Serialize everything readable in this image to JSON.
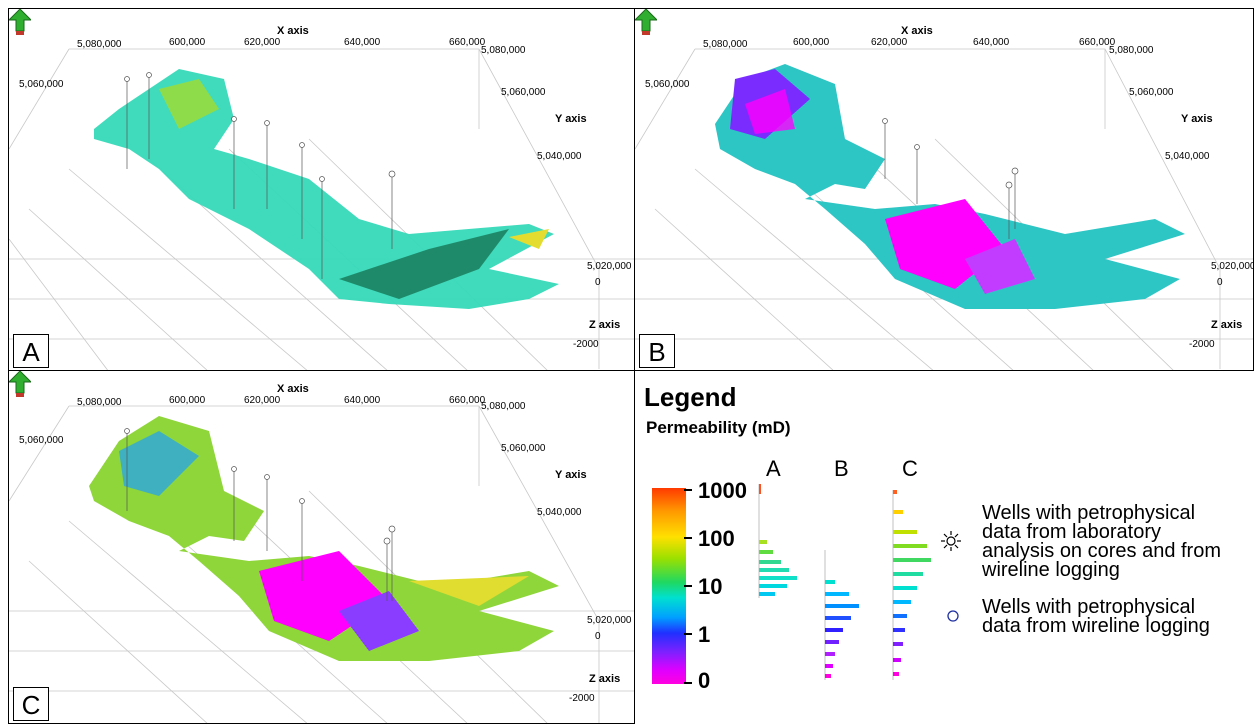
{
  "panels": [
    {
      "label": "A"
    },
    {
      "label": "B"
    },
    {
      "label": "C"
    }
  ],
  "axes": {
    "x_title": "X axis",
    "y_title": "Y axis",
    "z_title": "Z axis",
    "x_ticks": [
      "5,080,000",
      "600,000",
      "620,000",
      "640,000",
      "660,000"
    ],
    "x_tick_right": "5,080,000",
    "y_left_tick": "5,060,000",
    "y_right_ticks": [
      "5,060,000",
      "5,040,000",
      "5,020,000"
    ],
    "z_ticks": [
      "0",
      "-2000"
    ]
  },
  "legend": {
    "title": "Legend",
    "subtitle": "Permeability (mD)",
    "scale_labels": [
      "1000",
      "100",
      "10",
      "1",
      "0"
    ],
    "histogram_labels": [
      "A",
      "B",
      "C"
    ],
    "well_core_text": [
      "Wells with petrophysical",
      "data from laboratory",
      "analysis on cores and from",
      "wireline logging"
    ],
    "well_log_text": [
      "Wells with petrophysical",
      "data from wireline logging"
    ],
    "well_core_icon": "sun-star-icon",
    "well_log_icon": "circle-icon"
  },
  "colors": {
    "magenta": "#ff00ff",
    "blue": "#2a3cff",
    "cyan": "#2fe3c9",
    "green": "#6fd63a",
    "yellow": "#e6e02a",
    "arrow_green": "#2fae2f",
    "arrow_red": "#c0392b"
  }
}
